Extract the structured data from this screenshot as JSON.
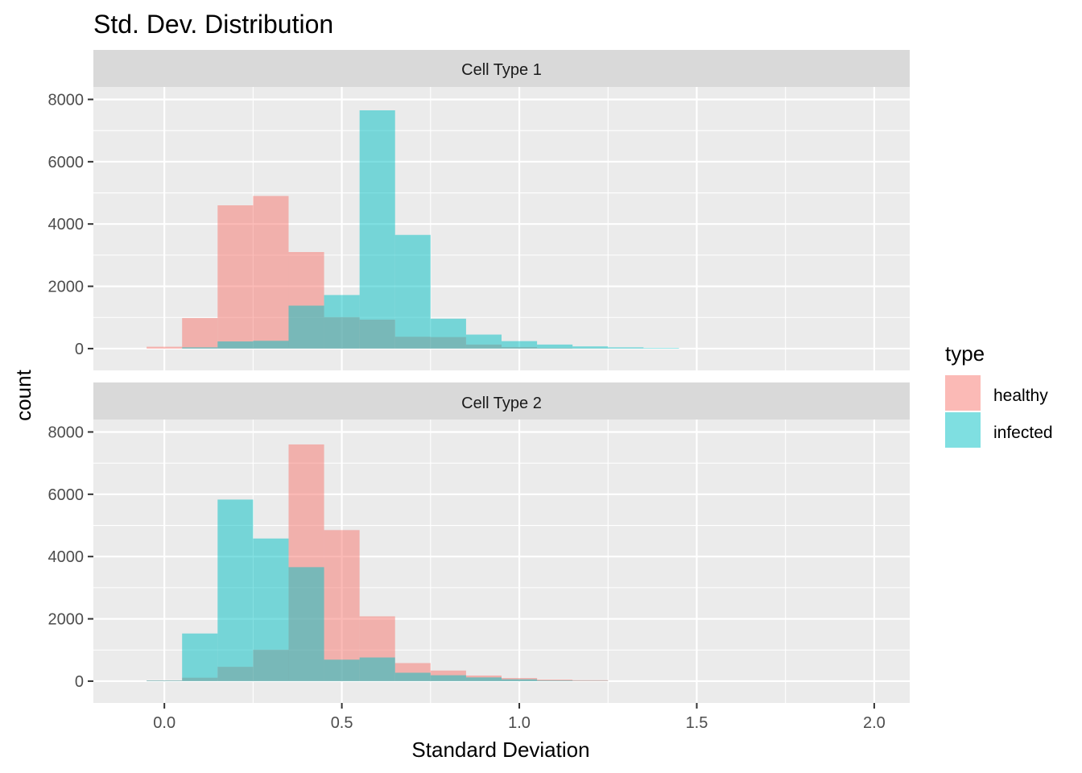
{
  "chart_data": {
    "type": "bar",
    "title": "Std. Dev. Distribution",
    "xlabel": "Standard Deviation",
    "ylabel": "count",
    "xlim": [
      -0.2,
      2.1
    ],
    "ylim": [
      -700,
      8400
    ],
    "xticks": [
      0.0,
      0.5,
      1.0,
      1.5,
      2.0
    ],
    "xtick_labels": [
      "0.0",
      "0.5",
      "1.0",
      "1.5",
      "2.0"
    ],
    "yticks": [
      0,
      2000,
      4000,
      6000,
      8000
    ],
    "ytick_labels": [
      "0",
      "2000",
      "4000",
      "6000",
      "8000"
    ],
    "grid": true,
    "bin_width": 0.1,
    "bin_centers": [
      0.0,
      0.1,
      0.2,
      0.3,
      0.4,
      0.5,
      0.6,
      0.7,
      0.8,
      0.9,
      1.0,
      1.1,
      1.2,
      1.3,
      1.4
    ],
    "legend": {
      "title": "type",
      "position": "right",
      "entries": [
        {
          "name": "healthy",
          "color": "#F8766D"
        },
        {
          "name": "infected",
          "color": "#00BFC4"
        }
      ]
    },
    "colors": {
      "healthy": "#F8766D",
      "infected": "#00BFC4",
      "panel_bg": "#EBEBEB",
      "strip_bg": "#D9D9D9",
      "grid": "#FFFFFF"
    },
    "facets": [
      {
        "label": "Cell Type 1",
        "series": [
          {
            "name": "healthy",
            "values": [
              60,
              980,
              4600,
              4900,
              3100,
              1010,
              930,
              380,
              370,
              130,
              50,
              20,
              10,
              5,
              0
            ]
          },
          {
            "name": "infected",
            "values": [
              0,
              40,
              230,
              250,
              1380,
              1720,
              7650,
              3650,
              960,
              450,
              240,
              130,
              70,
              40,
              20
            ]
          }
        ]
      },
      {
        "label": "Cell Type 2",
        "series": [
          {
            "name": "healthy",
            "values": [
              20,
              110,
              460,
              1010,
              7600,
              4850,
              2080,
              580,
              340,
              180,
              100,
              50,
              30,
              0,
              0
            ]
          },
          {
            "name": "infected",
            "values": [
              20,
              1530,
              5830,
              4580,
              3660,
              690,
              760,
              270,
              190,
              120,
              60,
              20,
              10,
              0,
              0
            ]
          }
        ]
      }
    ]
  }
}
